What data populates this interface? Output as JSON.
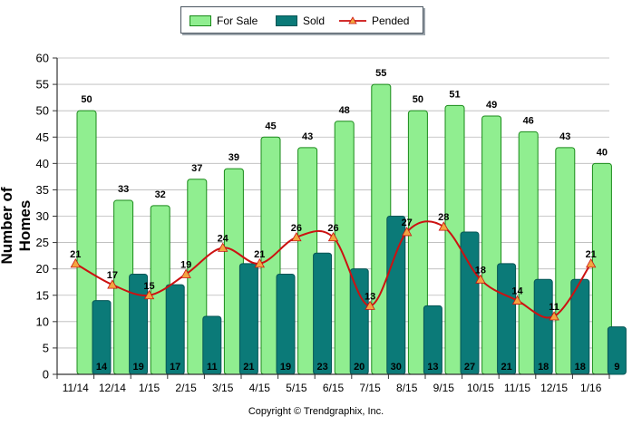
{
  "legend": {
    "for_sale": "For Sale",
    "sold": "Sold",
    "pended": "Pended"
  },
  "footer": {
    "copyright": "Copyright © Trendgraphix, Inc."
  },
  "colors": {
    "for_sale_fill": "#90ee90",
    "for_sale_stroke": "#1a8a1a",
    "sold_fill": "#0b7a78",
    "sold_stroke": "#055555",
    "pended_line": "#cc1111",
    "pended_marker": "#f2a640"
  },
  "chart_data": {
    "type": "bar",
    "title": "",
    "xlabel": "",
    "ylabel": "Number of Homes",
    "ylim": [
      0,
      60
    ],
    "yticks": [
      0,
      5,
      10,
      15,
      20,
      25,
      30,
      35,
      40,
      45,
      50,
      55,
      60
    ],
    "grid": true,
    "legend_position": "top",
    "categories": [
      "11/14",
      "12/14",
      "1/15",
      "2/15",
      "3/15",
      "4/15",
      "5/15",
      "6/15",
      "7/15",
      "8/15",
      "9/15",
      "10/15",
      "11/15",
      "12/15",
      "1/16"
    ],
    "series": [
      {
        "name": "For Sale",
        "type": "bar",
        "values": [
          50,
          33,
          32,
          37,
          39,
          45,
          43,
          48,
          55,
          50,
          51,
          49,
          46,
          43,
          40
        ]
      },
      {
        "name": "Sold",
        "type": "bar",
        "values": [
          14,
          19,
          17,
          11,
          21,
          19,
          23,
          20,
          30,
          13,
          27,
          21,
          18,
          18,
          9
        ]
      },
      {
        "name": "Pended",
        "type": "line",
        "values": [
          21,
          17,
          15,
          19,
          24,
          21,
          26,
          26,
          13,
          27,
          28,
          18,
          14,
          11,
          21
        ]
      }
    ]
  }
}
